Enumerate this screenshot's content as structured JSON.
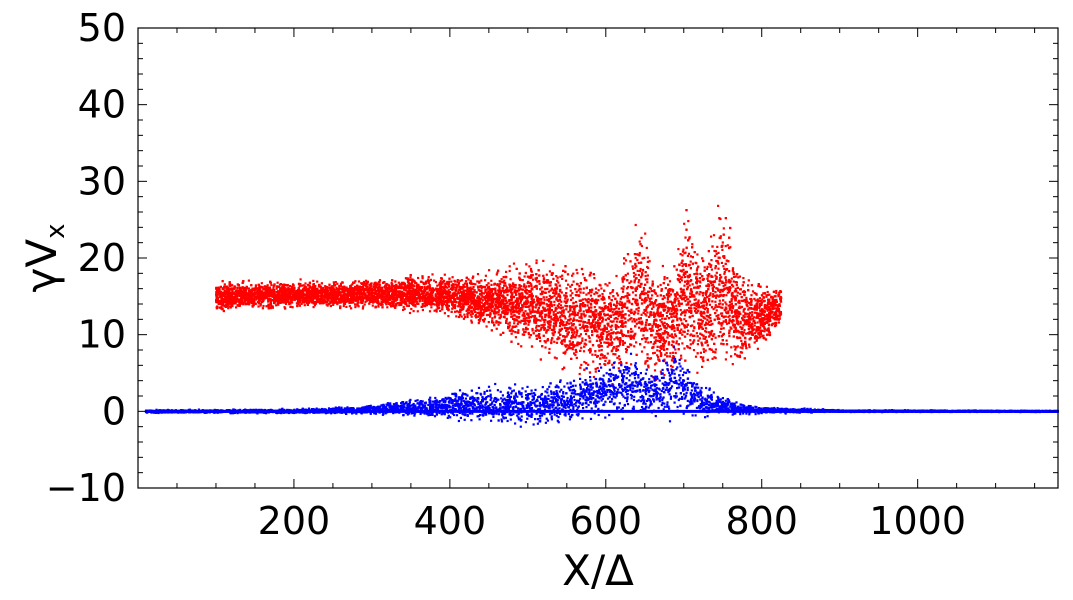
{
  "chart_data": {
    "type": "scatter",
    "title": "",
    "xlabel": "X/Δ",
    "ylabel": "γV",
    "ylabel_sub": "x",
    "xlim": [
      0,
      1180
    ],
    "ylim": [
      -10,
      50
    ],
    "x_ticks": [
      200,
      400,
      600,
      800,
      1000
    ],
    "x_tick_labels": [
      "200",
      "400",
      "600",
      "800",
      "1000"
    ],
    "y_ticks": [
      -10,
      0,
      10,
      20,
      30,
      40,
      50
    ],
    "y_tick_labels": [
      "−10",
      "0",
      "10",
      "20",
      "30",
      "40",
      "50"
    ],
    "grid": false,
    "legend": "none",
    "series": [
      {
        "color": "#ff0000",
        "x_range": [
          100,
          825
        ],
        "envelope": [
          [
            100,
            13.0,
            17.0
          ],
          [
            200,
            13.3,
            17.0
          ],
          [
            300,
            13.3,
            17.2
          ],
          [
            350,
            13.0,
            17.8
          ],
          [
            400,
            12.5,
            17.8
          ],
          [
            450,
            10.5,
            18.0
          ],
          [
            500,
            8.0,
            20.0
          ],
          [
            540,
            6.0,
            20.0
          ],
          [
            560,
            4.0,
            19.0
          ],
          [
            580,
            5.0,
            21.0
          ],
          [
            600,
            3.5,
            18.0
          ],
          [
            620,
            5.0,
            19.0
          ],
          [
            645,
            4.0,
            26.0
          ],
          [
            665,
            3.5,
            20.0
          ],
          [
            690,
            4.5,
            20.0
          ],
          [
            705,
            5.0,
            28.0
          ],
          [
            725,
            5.0,
            20.0
          ],
          [
            745,
            5.0,
            29.0
          ],
          [
            770,
            5.0,
            20.0
          ],
          [
            800,
            8.0,
            16.5
          ],
          [
            825,
            11.0,
            16.5
          ]
        ]
      },
      {
        "color": "#0000ff",
        "x_range": [
          10,
          1180
        ],
        "envelope": [
          [
            10,
            -0.2,
            0.2
          ],
          [
            200,
            -0.3,
            0.3
          ],
          [
            300,
            -0.4,
            0.8
          ],
          [
            360,
            -0.8,
            1.8
          ],
          [
            400,
            -1.0,
            2.5
          ],
          [
            450,
            -1.5,
            3.5
          ],
          [
            500,
            -2.0,
            3.5
          ],
          [
            550,
            -1.5,
            4.5
          ],
          [
            600,
            -1.0,
            6.0
          ],
          [
            630,
            -1.0,
            8.5
          ],
          [
            660,
            -1.0,
            5.0
          ],
          [
            690,
            -1.0,
            9.0
          ],
          [
            720,
            -0.8,
            4.0
          ],
          [
            760,
            -0.5,
            1.5
          ],
          [
            800,
            -0.3,
            0.6
          ],
          [
            900,
            -0.1,
            0.2
          ],
          [
            1180,
            -0.1,
            0.1
          ]
        ]
      }
    ]
  }
}
